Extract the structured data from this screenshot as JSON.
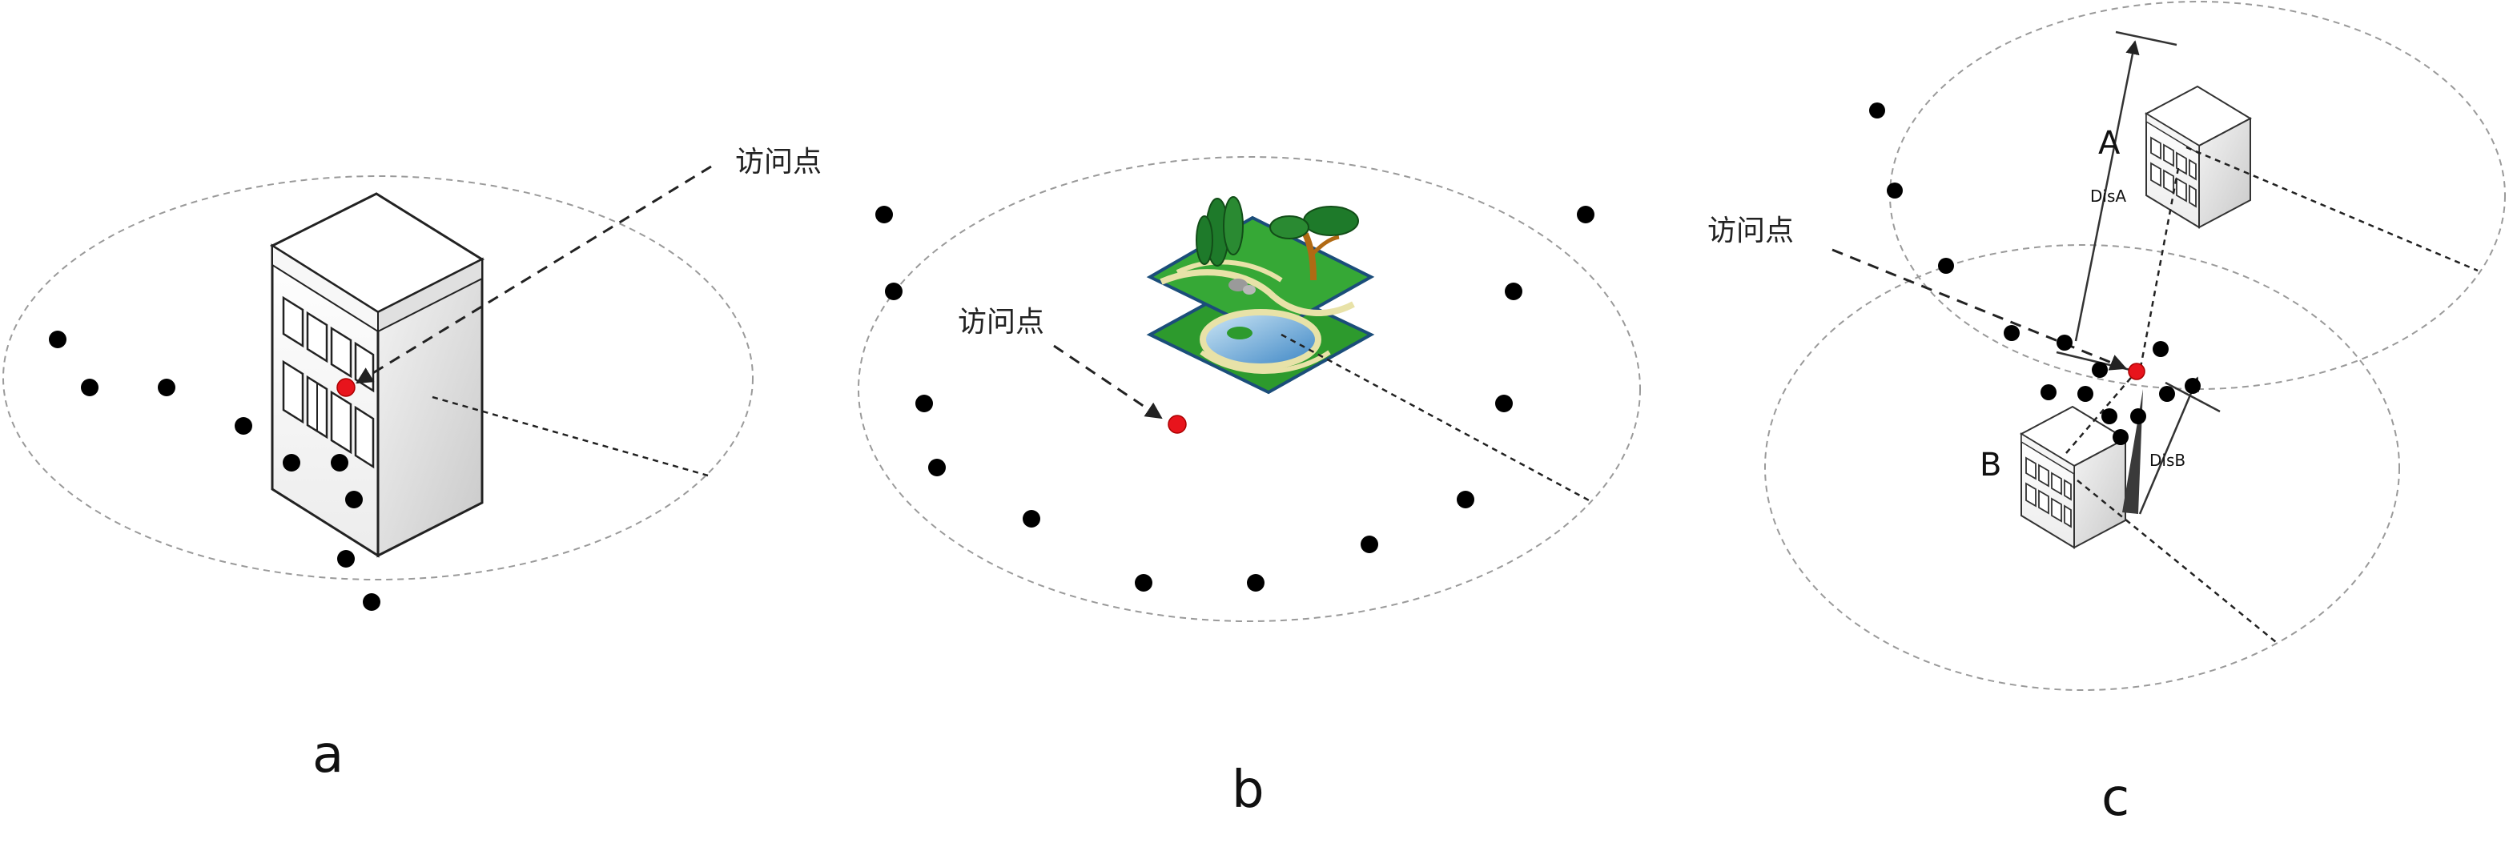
{
  "panels": {
    "a": {
      "label": "a",
      "access_point_label": "访问点"
    },
    "b": {
      "label": "b",
      "access_point_label": "访问点"
    },
    "c": {
      "label": "c",
      "access_point_label": "访问点",
      "building_a_label": "A",
      "building_b_label": "B",
      "distance_a_label": "DisA",
      "distance_b_label": "DisB"
    }
  },
  "colors": {
    "access_point": "#e8141c",
    "poi_dot": "#000000",
    "ellipse": "#9a9a9a"
  },
  "icons": [
    "building-icon",
    "park-map-icon"
  ]
}
